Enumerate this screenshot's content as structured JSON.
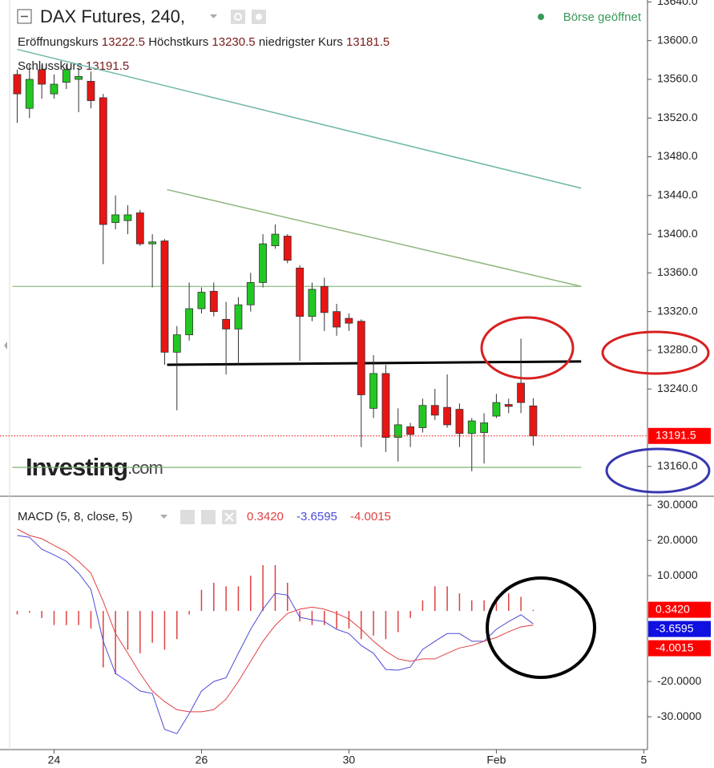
{
  "chart_data": [
    {
      "type": "candlestick",
      "title": "DAX Futures, 240,",
      "status": "Börse geöffnet",
      "ohlc_labels": {
        "open": "Eröffnungskurs",
        "high": "Höchstkurs",
        "low": "niedrigster Kurs",
        "close": "Schlusskurs"
      },
      "logo": [
        "Investing",
        ".com"
      ],
      "up_color": "#22c822",
      "down_color": "#e81515",
      "open": [
        13565,
        13530,
        13570,
        13545,
        13557,
        13560,
        13558,
        13541,
        13412,
        13414,
        13422,
        13390,
        13393,
        13278,
        13296,
        13323,
        13341,
        13312,
        13302,
        13327,
        13350,
        13388,
        13398,
        13365,
        13315,
        13346,
        13320,
        13313,
        13310,
        13220,
        13256,
        13190,
        13201,
        13200,
        13223,
        13221,
        13219,
        13194,
        13195,
        13212,
        13224,
        13246,
        13222.5
      ],
      "high": [
        13570,
        13575,
        13575,
        13565,
        13575,
        13572,
        13568,
        13545,
        13440,
        13430,
        13425,
        13400,
        13395,
        13305,
        13350,
        13345,
        13350,
        13330,
        13335,
        13360,
        13400,
        13410,
        13400,
        13368,
        13350,
        13355,
        13328,
        13318,
        13312,
        13275,
        13265,
        13220,
        13205,
        13230,
        13240,
        13255,
        13225,
        13210,
        13215,
        13235,
        13230,
        13292,
        13230.5
      ],
      "low": [
        13515,
        13520,
        13540,
        13540,
        13550,
        13526,
        13530,
        13369,
        13405,
        13400,
        13388,
        13345,
        13265,
        13218,
        13290,
        13318,
        13315,
        13255,
        13265,
        13320,
        13345,
        13385,
        13370,
        13269,
        13310,
        13300,
        13295,
        13300,
        13180,
        13210,
        13175,
        13165,
        13180,
        13195,
        13208,
        13200,
        13180,
        13155,
        13163,
        13210,
        13215,
        13215,
        13181.5
      ],
      "close": [
        13545,
        13560,
        13555,
        13555,
        13570,
        13563,
        13538,
        13410,
        13420,
        13420,
        13390,
        13392,
        13278,
        13296,
        13323,
        13340,
        13320,
        13302,
        13327,
        13350,
        13390,
        13400,
        13373,
        13315,
        13343,
        13319,
        13304,
        13308,
        13234,
        13256,
        13190,
        13203,
        13193,
        13223,
        13213,
        13203,
        13194,
        13207,
        13205,
        13226,
        13222,
        13226,
        13191.5
      ],
      "last_price_color": "#ff0000",
      "drawings": [
        {
          "color": "#6fb8a8",
          "width": 1.5,
          "x": [
            0,
            45.9
          ],
          "values": [
            13591,
            13447.5
          ]
        },
        {
          "color": "#8fb57f",
          "width": 1.5,
          "x": [
            12.2,
            45.9
          ],
          "values": [
            13446,
            13346
          ]
        },
        {
          "color": "#8fbf7f",
          "width": 1.2,
          "x": [
            -0.4,
            45.9
          ],
          "values": [
            13346,
            13346
          ]
        },
        {
          "color": "#000000",
          "width": 3,
          "x": [
            12.2,
            45.9
          ],
          "values": [
            13265,
            13268.5
          ]
        },
        {
          "color": "#7fb06f",
          "width": 1.2,
          "x": [
            -0.4,
            45.9
          ],
          "values": [
            13159,
            13159
          ]
        }
      ],
      "xlim": [
        -1.4,
        51.3
      ],
      "ylim": [
        13130,
        13642
      ],
      "yticks": [
        {
          "value": 13640,
          "label": "13640.0"
        },
        {
          "value": 13600,
          "label": "13600.0"
        },
        {
          "value": 13560,
          "label": "13560.0"
        },
        {
          "value": 13520,
          "label": "13520.0"
        },
        {
          "value": 13480,
          "label": "13480.0"
        },
        {
          "value": 13440,
          "label": "13440.0"
        },
        {
          "value": 13400,
          "label": "13400.0"
        },
        {
          "value": 13360,
          "label": "13360.0"
        },
        {
          "value": 13320,
          "label": "13320.0"
        },
        {
          "value": 13280,
          "label": "13280.0"
        },
        {
          "value": 13240,
          "label": "13240.0"
        },
        {
          "value": 13160,
          "label": "13160.0"
        }
      ]
    },
    {
      "type": "macd",
      "title": "MACD (5, 8, close, 5)",
      "series": [
        {
          "style": "histogram",
          "color": "#e04040",
          "values": [
            -1,
            -0.5,
            -2,
            -4,
            -4,
            -4,
            -5,
            -16,
            -18,
            -11,
            -12,
            -9,
            -11,
            -8,
            -1,
            6,
            8,
            7,
            7,
            10,
            13,
            13,
            8,
            -3,
            -4,
            -4,
            -5,
            -5,
            -8,
            -7,
            -8,
            -6,
            -2,
            3,
            7,
            7,
            5,
            3,
            3,
            4,
            5,
            4,
            0.342
          ],
          "value_labels": [
            null,
            null,
            null,
            null,
            null,
            null,
            null,
            null,
            null,
            null,
            null,
            null,
            null,
            null,
            null,
            null,
            null,
            null,
            null,
            null,
            null,
            null,
            null,
            null,
            null,
            null,
            null,
            null,
            null,
            null,
            null,
            null,
            null,
            null,
            null,
            null,
            null,
            null,
            null,
            null,
            null,
            null,
            "0.3420"
          ]
        },
        {
          "style": "line",
          "color": "#4b4bd8",
          "values": [
            21.4,
            20.9,
            17.5,
            15.9,
            14.1,
            10.7,
            6.1,
            -8.6,
            -17.7,
            -20,
            -22.7,
            -23.4,
            -33.6,
            -34.8,
            -29.1,
            -22.7,
            -20,
            -18.9,
            -12,
            -5.2,
            0.5,
            5,
            4.5,
            -1.8,
            -2.5,
            -3,
            -5.2,
            -6.4,
            -9.8,
            -12,
            -16.6,
            -16.8,
            -15.9,
            -10.9,
            -8.6,
            -6.4,
            -6.4,
            -8.6,
            -8.6,
            -5.2,
            -3,
            -1.1,
            -3.6595
          ],
          "value_labels": [
            null,
            null,
            null,
            null,
            null,
            null,
            null,
            null,
            null,
            null,
            null,
            null,
            null,
            null,
            null,
            null,
            null,
            null,
            null,
            null,
            null,
            null,
            null,
            null,
            null,
            null,
            null,
            null,
            null,
            null,
            null,
            null,
            null,
            null,
            null,
            null,
            null,
            null,
            null,
            null,
            null,
            null,
            "-3.6595"
          ]
        },
        {
          "style": "line",
          "color": "#e04040",
          "values": [
            23.2,
            21.4,
            20.5,
            18.6,
            16.8,
            14.1,
            10.7,
            2.7,
            -6.4,
            -12,
            -17.7,
            -22.7,
            -25.7,
            -28,
            -28.6,
            -28.6,
            -28,
            -25,
            -20,
            -14.3,
            -8.6,
            -4.1,
            -0.7,
            0.5,
            1.1,
            0.5,
            -0.7,
            -2.3,
            -5.2,
            -8.6,
            -11.4,
            -13.6,
            -14.3,
            -13.6,
            -13.6,
            -12,
            -10.5,
            -9.8,
            -8.6,
            -7.5,
            -5.9,
            -4.5,
            -4.0015
          ],
          "value_labels": [
            null,
            null,
            null,
            null,
            null,
            null,
            null,
            null,
            null,
            null,
            null,
            null,
            null,
            null,
            null,
            null,
            null,
            null,
            null,
            null,
            null,
            null,
            null,
            null,
            null,
            null,
            null,
            null,
            null,
            null,
            null,
            null,
            null,
            null,
            null,
            null,
            null,
            null,
            null,
            null,
            null,
            null,
            "-4.0015"
          ]
        }
      ],
      "xlim": [
        -1.4,
        51.3
      ],
      "xticks": [
        {
          "value": 3,
          "label": "24"
        },
        {
          "value": 15,
          "label": "26"
        },
        {
          "value": 27,
          "label": "30"
        },
        {
          "value": 39,
          "label": "Feb"
        },
        {
          "value": 51,
          "label": "5"
        }
      ],
      "ylim": [
        -39.3,
        32.3
      ],
      "yticks": [
        {
          "value": 30,
          "label": "30.0000"
        },
        {
          "value": 20,
          "label": "20.0000"
        },
        {
          "value": 10,
          "label": "10.0000"
        },
        {
          "value": -20,
          "label": "-20.0000"
        },
        {
          "value": -30,
          "label": "-30.0000"
        }
      ]
    }
  ]
}
